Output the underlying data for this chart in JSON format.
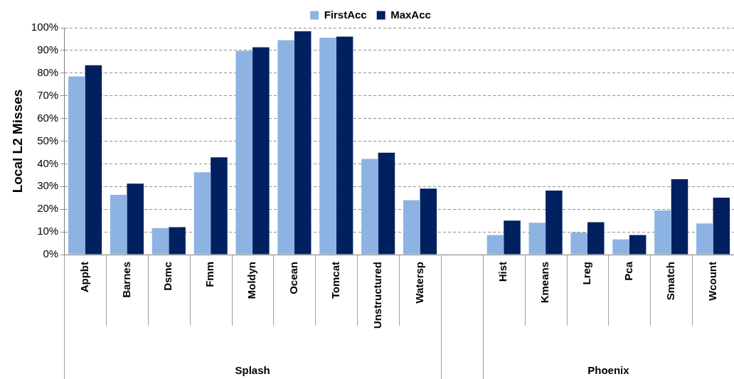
{
  "chart_data": {
    "type": "bar",
    "ylabel": "Local L2 Misses",
    "categories": [
      "Appbt",
      "Barnes",
      "Dsmc",
      "Fmm",
      "Moldyn",
      "Ocean",
      "Tomcat",
      "Unstructured",
      "Watersp",
      null,
      "Hist",
      "Kmeans",
      "Lreg",
      "Pca",
      "Smatch",
      "Wcount"
    ],
    "series": [
      {
        "name": "FirstAcc",
        "color": "#8db3e2",
        "values": [
          78.5,
          26.3,
          11.7,
          36.3,
          89.8,
          94.5,
          95.6,
          42.2,
          24.0,
          null,
          8.6,
          14.0,
          9.7,
          6.7,
          19.4,
          13.7
        ]
      },
      {
        "name": "MaxAcc",
        "color": "#002060",
        "values": [
          83.5,
          31.3,
          12.1,
          42.9,
          91.4,
          98.4,
          96.1,
          44.9,
          29.1,
          null,
          15.0,
          28.2,
          14.3,
          8.6,
          33.2,
          25.1
        ]
      }
    ],
    "ylim": [
      0,
      100
    ],
    "yticks": [
      {
        "value": 0,
        "label": "0%"
      },
      {
        "value": 10,
        "label": "10%"
      },
      {
        "value": 20,
        "label": "20%"
      },
      {
        "value": 30,
        "label": "30%"
      },
      {
        "value": 40,
        "label": "40%"
      },
      {
        "value": 50,
        "label": "50%"
      },
      {
        "value": 60,
        "label": "60%"
      },
      {
        "value": 70,
        "label": "70%"
      },
      {
        "value": 80,
        "label": "80%"
      },
      {
        "value": 90,
        "label": "90%"
      },
      {
        "value": 100,
        "label": "100%"
      }
    ],
    "annotations": [
      "Splash",
      "Phoenix"
    ],
    "grid": "y",
    "legend": "top"
  }
}
